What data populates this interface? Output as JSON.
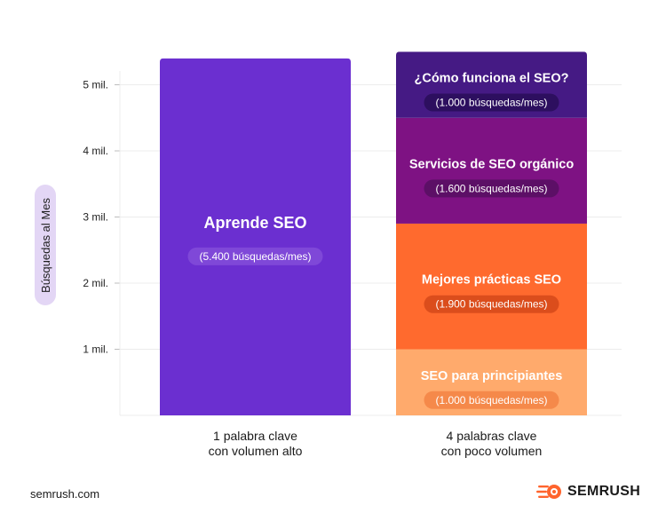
{
  "chart_data": {
    "type": "bar",
    "stacked": true,
    "ylabel": "Búsquedas al Mes",
    "ylim": [
      0,
      5600
    ],
    "yticks": [
      {
        "value": 1000,
        "label": "1 mil."
      },
      {
        "value": 2000,
        "label": "2 mil."
      },
      {
        "value": 3000,
        "label": "3 mil."
      },
      {
        "value": 4000,
        "label": "4 mil."
      },
      {
        "value": 5000,
        "label": "5 mil."
      }
    ],
    "grid": true,
    "bars": [
      {
        "category": [
          "1 palabra clave",
          "con volumen alto"
        ],
        "segments": [
          {
            "label": "Aprende SEO",
            "volume_label": "(5.400 búsquedas/mes)",
            "value": 5400,
            "color": "#6b2fd0",
            "pill_color": "#7f48d8"
          }
        ]
      },
      {
        "category": [
          "4 palabras clave",
          "con poco volumen"
        ],
        "segments": [
          {
            "label": "SEO para principiantes",
            "volume_label": "(1.000 búsquedas/mes)",
            "value": 1000,
            "color": "#ffaa6c",
            "pill_color": "#f5894a"
          },
          {
            "label": "Mejores prácticas SEO",
            "volume_label": "(1.900 búsquedas/mes)",
            "value": 1900,
            "color": "#ff6a2e",
            "pill_color": "#db4d1c"
          },
          {
            "label": "Servicios de SEO orgánico",
            "volume_label": "(1.600 búsquedas/mes)",
            "value": 1600,
            "color": "#7e1283",
            "pill_color": "#5c0f66"
          },
          {
            "label": "¿Cómo funciona el SEO?",
            "volume_label": "(1.000 búsquedas/mes)",
            "value": 1000,
            "color": "#451a84",
            "pill_color": "#2d0f5f"
          }
        ]
      }
    ]
  },
  "footer": {
    "source": "semrush.com",
    "brand": "SEMRUSH",
    "brand_icon": "semrush-flame-icon",
    "brand_color": "#ff642d"
  }
}
